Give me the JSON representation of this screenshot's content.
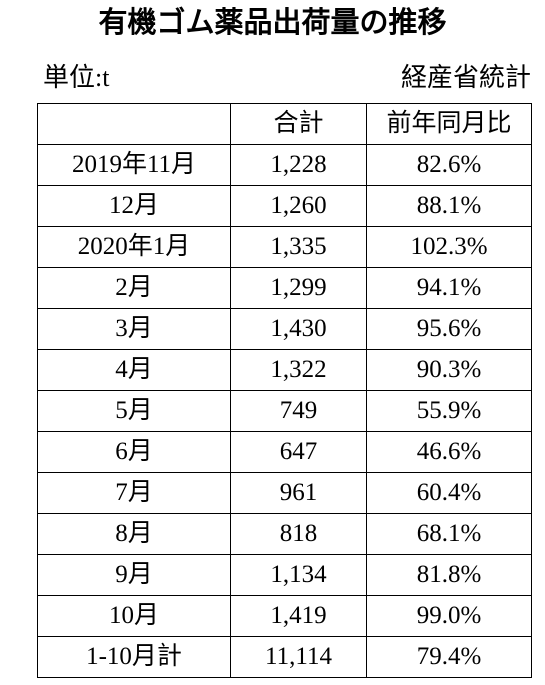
{
  "header": {
    "title": "有機ゴム薬品出荷量の推移",
    "unit": "単位:t",
    "source": "経産省統計"
  },
  "table": {
    "columns": [
      "合計",
      "前年同月比"
    ],
    "rows": [
      [
        "2019年11月",
        "1,228",
        "82.6%"
      ],
      [
        "12月",
        "1,260",
        "88.1%"
      ],
      [
        "2020年1月",
        "1,335",
        "102.3%"
      ],
      [
        "2月",
        "1,299",
        "94.1%"
      ],
      [
        "3月",
        "1,430",
        "95.6%"
      ],
      [
        "4月",
        "1,322",
        "90.3%"
      ],
      [
        "5月",
        "749",
        "55.9%"
      ],
      [
        "6月",
        "647",
        "46.6%"
      ],
      [
        "7月",
        "961",
        "60.4%"
      ],
      [
        "8月",
        "818",
        "68.1%"
      ],
      [
        "9月",
        "1,134",
        "81.8%"
      ],
      [
        "10月",
        "1,419",
        "99.0%"
      ],
      [
        "1-10月計",
        "11,114",
        "79.4%"
      ]
    ]
  }
}
